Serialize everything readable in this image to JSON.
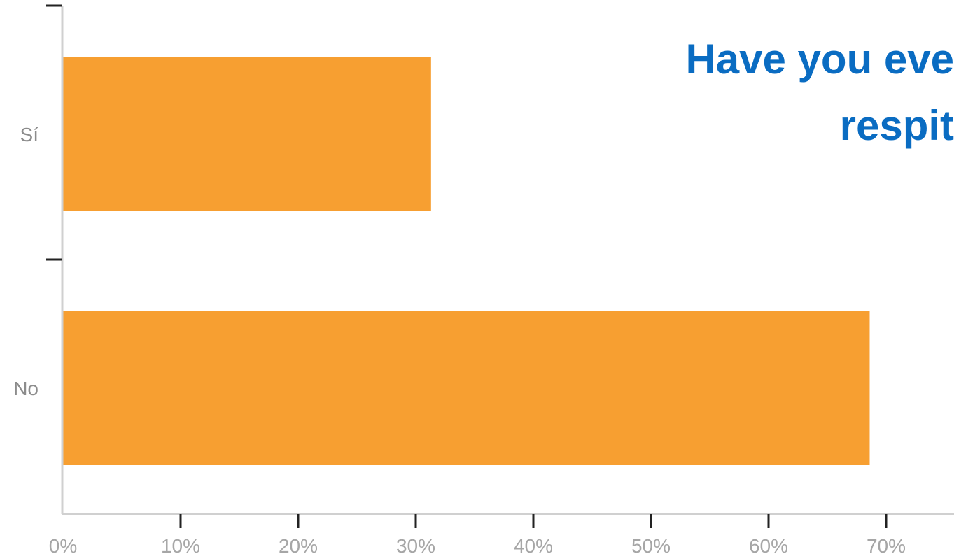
{
  "chart_data": {
    "type": "bar",
    "orientation": "horizontal",
    "title_lines": [
      "Have you eve",
      "respit"
    ],
    "categories": [
      "Sí",
      "No"
    ],
    "values": [
      31.3,
      68.6
    ],
    "unit": "%",
    "xlim": [
      0,
      70
    ],
    "xticks": [
      "0%",
      "10%",
      "20%",
      "30%",
      "40%",
      "50%",
      "60%",
      "70%"
    ],
    "xlabel": "",
    "ylabel": "",
    "grid": false,
    "legend": "none",
    "bar_color": "#f79f31",
    "title_color": "#0a6cc2",
    "axis_color": "#d0d0d0"
  }
}
